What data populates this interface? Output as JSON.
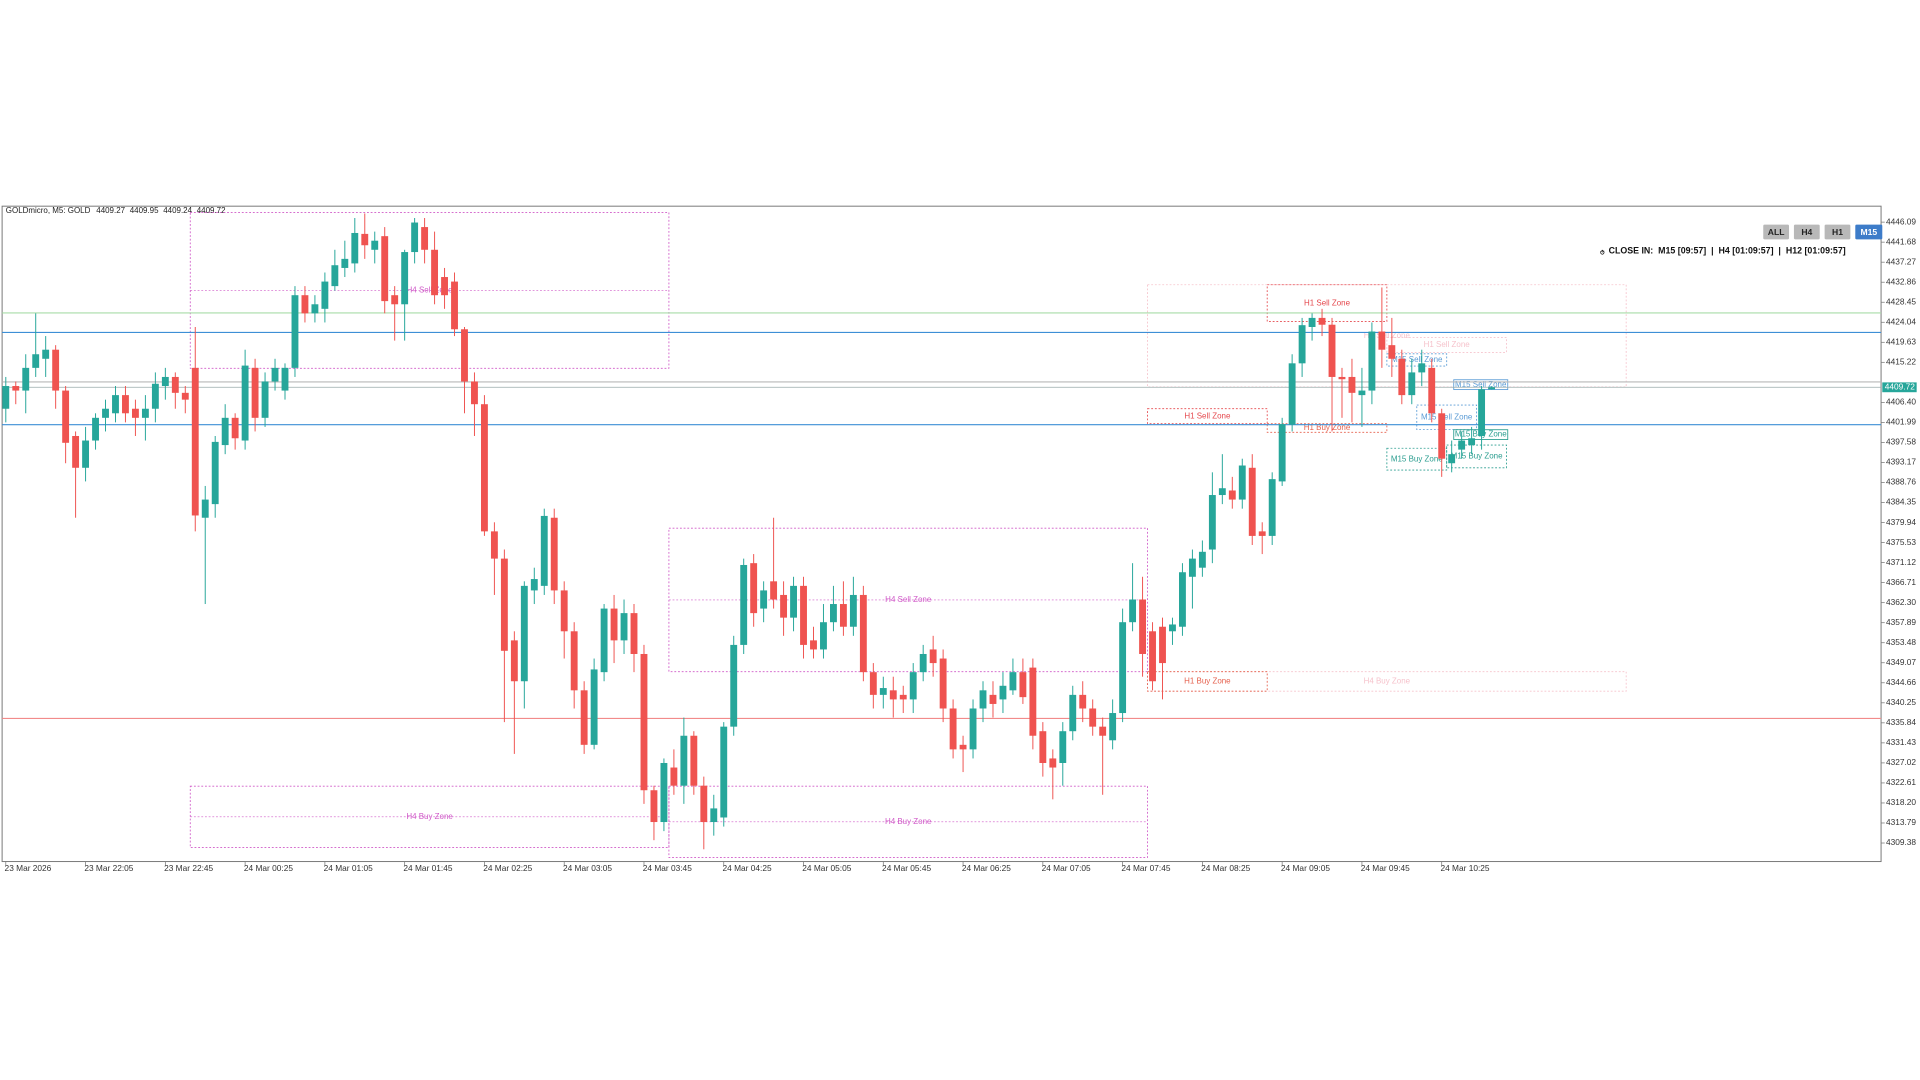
{
  "chart_data": {
    "type": "candlestick",
    "header": {
      "symbol": "GOLDmicro, M5:  GOLD"
    },
    "panel": {
      "buttons": [
        "ALL",
        "H4",
        "H1",
        "M15"
      ],
      "active": 3,
      "countdown_label": "CLOSE IN:",
      "countdowns": [
        "M15 [09:57]",
        "H4 [01:09:57]",
        "H12 [01:09:57]"
      ]
    },
    "up_color": "#26a69a",
    "down_color": "#ef5350",
    "ylim": [
      4305.3,
      4449.6
    ],
    "yticks": [
      4446.09,
      4441.68,
      4437.27,
      4432.86,
      4428.45,
      4424.04,
      4419.63,
      4415.22,
      {
        "value": 4406.4,
        "label": "4406.40"
      },
      4401.99,
      4397.58,
      4393.17,
      4388.76,
      4384.35,
      4379.94,
      4375.53,
      4371.12,
      4366.71,
      {
        "value": 4362.3,
        "label": "4362.30"
      },
      4357.89,
      4353.48,
      4349.07,
      4344.66,
      4340.25,
      4335.84,
      4331.43,
      4327.02,
      4322.61,
      {
        "value": 4318.2,
        "label": "4318.20"
      },
      4313.79,
      4309.38
    ],
    "categories": [
      "23 Mar 2026",
      null,
      null,
      null,
      null,
      null,
      null,
      null,
      "23 Mar 22:05",
      null,
      null,
      null,
      null,
      null,
      null,
      null,
      "23 Mar 22:45",
      null,
      null,
      null,
      null,
      null,
      null,
      null,
      "24 Mar 00:25",
      null,
      null,
      null,
      null,
      null,
      null,
      null,
      "24 Mar 01:05",
      null,
      null,
      null,
      null,
      null,
      null,
      null,
      "24 Mar 01:45",
      null,
      null,
      null,
      null,
      null,
      null,
      null,
      "24 Mar 02:25",
      null,
      null,
      null,
      null,
      null,
      null,
      null,
      "24 Mar 03:05",
      null,
      null,
      null,
      null,
      null,
      null,
      null,
      "24 Mar 03:45",
      null,
      null,
      null,
      null,
      null,
      null,
      null,
      "24 Mar 04:25",
      null,
      null,
      null,
      null,
      null,
      null,
      null,
      "24 Mar 05:05",
      null,
      null,
      null,
      null,
      null,
      null,
      null,
      "24 Mar 05:45",
      null,
      null,
      null,
      null,
      null,
      null,
      null,
      "24 Mar 06:25",
      null,
      null,
      null,
      null,
      null,
      null,
      null,
      "24 Mar 07:05",
      null,
      null,
      null,
      null,
      null,
      null,
      null,
      "24 Mar 07:45",
      null,
      null,
      null,
      null,
      null,
      null,
      null,
      "24 Mar 08:25",
      null,
      null,
      null,
      null,
      null,
      null,
      null,
      "24 Mar 09:05",
      null,
      null,
      null,
      null,
      null,
      null,
      null,
      "24 Mar 09:45",
      null,
      null,
      null,
      null,
      null,
      null,
      null,
      "24 Mar 10:25",
      null,
      null,
      null,
      null,
      null
    ],
    "ohlc": [
      [
        4405,
        4412,
        4402,
        4410
      ],
      [
        4410,
        4411,
        4406,
        4409
      ],
      [
        4409,
        4417,
        4404,
        4414
      ],
      [
        4414,
        4426,
        4412,
        4417
      ],
      [
        4416,
        4421,
        4412,
        4418
      ],
      [
        4418,
        4419,
        4405,
        4409
      ],
      [
        4409,
        4410,
        4393,
        4397.5
      ],
      [
        4399,
        4400,
        4381,
        4392
      ],
      [
        4392,
        4401,
        4389,
        4398
      ],
      [
        4398,
        4404,
        4396,
        4403
      ],
      [
        4403,
        4407,
        4400,
        4405
      ],
      [
        4404,
        4410,
        4402,
        4408
      ],
      [
        4408,
        4410,
        4402,
        4404
      ],
      [
        4405,
        4407,
        4399,
        4403
      ],
      [
        4403,
        4408,
        4398,
        4405
      ],
      [
        4405,
        4413,
        4402,
        4410.5
      ],
      [
        4410,
        4414,
        4407,
        4412
      ],
      [
        4412,
        4413,
        4405,
        4408.5
      ],
      [
        4408.5,
        4410,
        4404,
        4407
      ],
      [
        4414,
        4423,
        4378,
        4381.5
      ],
      [
        4381,
        4388,
        4362,
        4385
      ],
      [
        4384,
        4399,
        4381,
        4397.7
      ],
      [
        4397,
        4406,
        4395,
        4403
      ],
      [
        4403,
        4404,
        4396,
        4398.5
      ],
      [
        4398,
        4418,
        4396,
        4414.5
      ],
      [
        4414,
        4416,
        4400,
        4403
      ],
      [
        4403,
        4413,
        4401,
        4411
      ],
      [
        4411,
        4416,
        4409,
        4414
      ],
      [
        4409,
        4415,
        4407,
        4414
      ],
      [
        4414,
        4432,
        4412,
        4430
      ],
      [
        4430,
        4432,
        4424,
        4426
      ],
      [
        4426,
        4430,
        4424,
        4428
      ],
      [
        4427,
        4435,
        4424,
        4433
      ],
      [
        4432,
        4440,
        4431,
        4436.6
      ],
      [
        4436,
        4442,
        4434,
        4438
      ],
      [
        4437,
        4447,
        4435,
        4443.7
      ],
      [
        4443.5,
        4448,
        4438,
        4441
      ],
      [
        4440,
        4444,
        4437,
        4442
      ],
      [
        4443,
        4445,
        4426,
        4428.7
      ],
      [
        4430,
        4432,
        4420,
        4428
      ],
      [
        4428,
        4440,
        4420,
        4439.5
      ],
      [
        4439.5,
        4447,
        4437,
        4446
      ],
      [
        4445,
        4447,
        4437,
        4440
      ],
      [
        4440,
        4444,
        4428,
        4430
      ],
      [
        4434,
        4436,
        4427,
        4430
      ],
      [
        4433,
        4435,
        4421,
        4422.5
      ],
      [
        4422.5,
        4423,
        4404,
        4411
      ],
      [
        4411,
        4413,
        4399,
        4406
      ],
      [
        4406,
        4408,
        4377,
        4378
      ],
      [
        4378,
        4380,
        4364,
        4372
      ],
      [
        4372,
        4374,
        4336,
        4351.7
      ],
      [
        4354,
        4356,
        4329,
        4345
      ],
      [
        4345,
        4367,
        4339,
        4366
      ],
      [
        4365,
        4370,
        4362,
        4367.5
      ],
      [
        4366,
        4383,
        4364,
        4381.4
      ],
      [
        4381,
        4383,
        4362,
        4365
      ],
      [
        4365,
        4367,
        4350,
        4356
      ],
      [
        4356,
        4358,
        4339,
        4343
      ],
      [
        4343,
        4345,
        4329,
        4331
      ],
      [
        4331,
        4350,
        4330,
        4347.6
      ],
      [
        4347,
        4362,
        4345,
        4361
      ],
      [
        4361,
        4364,
        4349,
        4354
      ],
      [
        4354,
        4363,
        4351,
        4360
      ],
      [
        4360,
        4362,
        4347,
        4351
      ],
      [
        4351,
        4353,
        4318,
        4321
      ],
      [
        4321,
        4322,
        4310,
        4314
      ],
      [
        4314,
        4328,
        4312,
        4327
      ],
      [
        4326,
        4330,
        4320,
        4322
      ],
      [
        4322,
        4337,
        4318,
        4333
      ],
      [
        4333,
        4334,
        4320,
        4322
      ],
      [
        4322,
        4324,
        4308,
        4314
      ],
      [
        4314,
        4320,
        4311,
        4317
      ],
      [
        4315,
        4336,
        4313,
        4335
      ],
      [
        4335,
        4355,
        4333,
        4353
      ],
      [
        4353,
        4372,
        4351,
        4370.6
      ],
      [
        4371,
        4373,
        4357,
        4360
      ],
      [
        4361,
        4367,
        4358,
        4365
      ],
      [
        4367,
        4381,
        4361,
        4363
      ],
      [
        4364,
        4367,
        4355,
        4359
      ],
      [
        4359,
        4368,
        4356,
        4366
      ],
      [
        4366,
        4368,
        4350,
        4353
      ],
      [
        4354,
        4357,
        4350,
        4352
      ],
      [
        4352,
        4362,
        4350,
        4358
      ],
      [
        4358,
        4366,
        4356,
        4362
      ],
      [
        4362,
        4367,
        4355,
        4357
      ],
      [
        4357,
        4368,
        4355,
        4364
      ],
      [
        4364,
        4366,
        4345,
        4347
      ],
      [
        4347,
        4349,
        4339,
        4342
      ],
      [
        4342,
        4346,
        4339,
        4343.5
      ],
      [
        4343,
        4346,
        4337,
        4341
      ],
      [
        4342,
        4344,
        4338,
        4341
      ],
      [
        4341,
        4349,
        4338,
        4347
      ],
      [
        4347,
        4353,
        4345,
        4351
      ],
      [
        4352,
        4355,
        4346,
        4349
      ],
      [
        4350,
        4352,
        4336,
        4339
      ],
      [
        4339,
        4341,
        4328,
        4330
      ],
      [
        4331,
        4333,
        4325,
        4330
      ],
      [
        4330,
        4341,
        4328,
        4339
      ],
      [
        4339,
        4345,
        4336,
        4343
      ],
      [
        4342,
        4345,
        4337,
        4340
      ],
      [
        4341,
        4347,
        4338,
        4344
      ],
      [
        4343,
        4350,
        4342,
        4347
      ],
      [
        4347,
        4350,
        4340,
        4341.5
      ],
      [
        4348,
        4350,
        4330,
        4333
      ],
      [
        4334,
        4336,
        4324,
        4327
      ],
      [
        4328,
        4330,
        4319,
        4326
      ],
      [
        4327,
        4336,
        4322,
        4334
      ],
      [
        4334,
        4344,
        4332,
        4342
      ],
      [
        4342,
        4345,
        4336,
        4339
      ],
      [
        4339,
        4341,
        4333,
        4335
      ],
      [
        4335,
        4337,
        4320,
        4333
      ],
      [
        4332,
        4341,
        4330,
        4338
      ],
      [
        4338,
        4361,
        4336,
        4358
      ],
      [
        4358,
        4371,
        4356,
        4363
      ],
      [
        4363,
        4368,
        4346,
        4351
      ],
      [
        4356,
        4358,
        4343,
        4345
      ],
      [
        4357,
        4359,
        4341,
        4349
      ],
      [
        4356,
        4359,
        4353,
        4357.5
      ],
      [
        4357,
        4371,
        4355,
        4369
      ],
      [
        4368,
        4374,
        4361,
        4372
      ],
      [
        4370,
        4376,
        4368,
        4373.5
      ],
      [
        4374,
        4391,
        4371,
        4386
      ],
      [
        4386,
        4395,
        4384,
        4387.5
      ],
      [
        4387,
        4390,
        4383,
        4385
      ],
      [
        4385,
        4394,
        4383,
        4392.5
      ],
      [
        4392,
        4395,
        4375,
        4377
      ],
      [
        4378,
        4380,
        4373,
        4377
      ],
      [
        4377,
        4391,
        4375,
        4389.5
      ],
      [
        4389,
        4403,
        4388,
        4401.6
      ],
      [
        4401.5,
        4417,
        4400,
        4415
      ],
      [
        4415,
        4425,
        4412,
        4423.4
      ],
      [
        4423,
        4426,
        4420,
        4425
      ],
      [
        4425,
        4427,
        4421,
        4423.5
      ],
      [
        4423.5,
        4425,
        4400,
        4412
      ],
      [
        4412,
        4414,
        4403,
        4411.5
      ],
      [
        4412,
        4416,
        4402,
        4408.5
      ],
      [
        4408,
        4414,
        4401,
        4409
      ],
      [
        4409,
        4424,
        4406,
        4422
      ],
      [
        4422,
        4431.7,
        4414,
        4418
      ],
      [
        4419,
        4425,
        4412,
        4416
      ],
      [
        4416,
        4418,
        4406,
        4408
      ],
      [
        4408,
        4416,
        4406,
        4413
      ],
      [
        4413,
        4418,
        4410,
        4415
      ],
      [
        4414,
        4416,
        4402,
        4404
      ],
      [
        4404,
        4405,
        4390,
        4394
      ],
      [
        4393,
        4398,
        4391,
        4395
      ],
      [
        4396,
        4400,
        4394,
        4398
      ],
      [
        4397,
        4401,
        4395,
        4398.5
      ],
      [
        4399,
        4410,
        4396,
        4409.3
      ],
      [
        4409.27,
        4409.95,
        4409.24,
        4409.72
      ]
    ],
    "hlines": [
      {
        "value": 4426.1,
        "color": "#a8dca8"
      },
      {
        "value": 4421.8,
        "color": "#3d8fd6"
      },
      {
        "value": 4410.9,
        "color": "#b8b8b8"
      },
      {
        "value": 4401.5,
        "color": "#3d8fd6"
      },
      {
        "value": 4336.8,
        "color": "#f28b8b"
      }
    ],
    "zones": [
      {
        "label": "H4 Sell Zone",
        "start": 19,
        "end": 67,
        "top": 4448.2,
        "bottom": 4413.9,
        "color": "#d05ac8",
        "midline": true
      },
      {
        "label": "H4 Buy Zone",
        "start": 19,
        "end": 67,
        "top": 4321.9,
        "bottom": 4308.4,
        "color": "#d05ac8",
        "midline": true
      },
      {
        "label": "H4 Sell Zone",
        "start": 67,
        "end": 115,
        "top": 4378.7,
        "bottom": 4347.1,
        "color": "#d05ac8",
        "midline": true
      },
      {
        "label": "H4 Buy Zone",
        "start": 67,
        "end": 115,
        "top": 4321.9,
        "bottom": 4306.2,
        "color": "#d05ac8",
        "midline": true
      },
      {
        "label": "H4 Sell Zone",
        "start": 115,
        "end": 163,
        "top": 4432.3,
        "bottom": 4409.8,
        "color": "#f6c3cc"
      },
      {
        "label": "H4 Buy Zone",
        "start": 115,
        "end": 163,
        "top": 4347.1,
        "bottom": 4342.8,
        "color": "#f6c3cc"
      },
      {
        "label": "H1 Sell Zone",
        "start": 115,
        "end": 127,
        "top": 4405.0,
        "bottom": 4401.7,
        "color": "#e5484d"
      },
      {
        "label": "H1 Buy Zone",
        "start": 115,
        "end": 127,
        "top": 4347.1,
        "bottom": 4342.8,
        "color": "#e5604d"
      },
      {
        "label": "H1 Sell Zone",
        "start": 127,
        "end": 139,
        "top": 4432.3,
        "bottom": 4424.2,
        "color": "#e5484d"
      },
      {
        "label": "H1 Buy Zone",
        "start": 127,
        "end": 139,
        "top": 4401.7,
        "bottom": 4399.8,
        "color": "#e5604d"
      },
      {
        "label": "H1 Sell Zone",
        "start": 139,
        "end": 151,
        "top": 4420.7,
        "bottom": 4417.4,
        "color": "#f6c3cc"
      },
      {
        "label": "M15 Sell Zone",
        "start": 139,
        "end": 145,
        "top": 4417.1,
        "bottom": 4414.4,
        "color": "#5a9bd5"
      },
      {
        "label": "M15 Sell Zone",
        "start": 142,
        "end": 148,
        "top": 4405.8,
        "bottom": 4400.4,
        "color": "#5a9bd5"
      },
      {
        "label": "M15 Buy Zone",
        "start": 139,
        "end": 145,
        "top": 4396.3,
        "bottom": 4391.5,
        "color": "#2a9d8f"
      },
      {
        "label": "M15 Buy Zone",
        "start": 145,
        "end": 151,
        "top": 4397.0,
        "bottom": 4392.0,
        "color": "#2a9d8f"
      },
      {
        "label": "M15 Sell Zone",
        "start": 147,
        "end": 151,
        "top": 4410.9,
        "bottom": 4409.7,
        "color": "#5a9bd5",
        "tag": true
      },
      {
        "label": "M15 Buy Zone",
        "start": 148,
        "end": 151,
        "top": 4399.7,
        "bottom": 4398.9,
        "color": "#2a9d8f",
        "tag": true
      }
    ]
  }
}
